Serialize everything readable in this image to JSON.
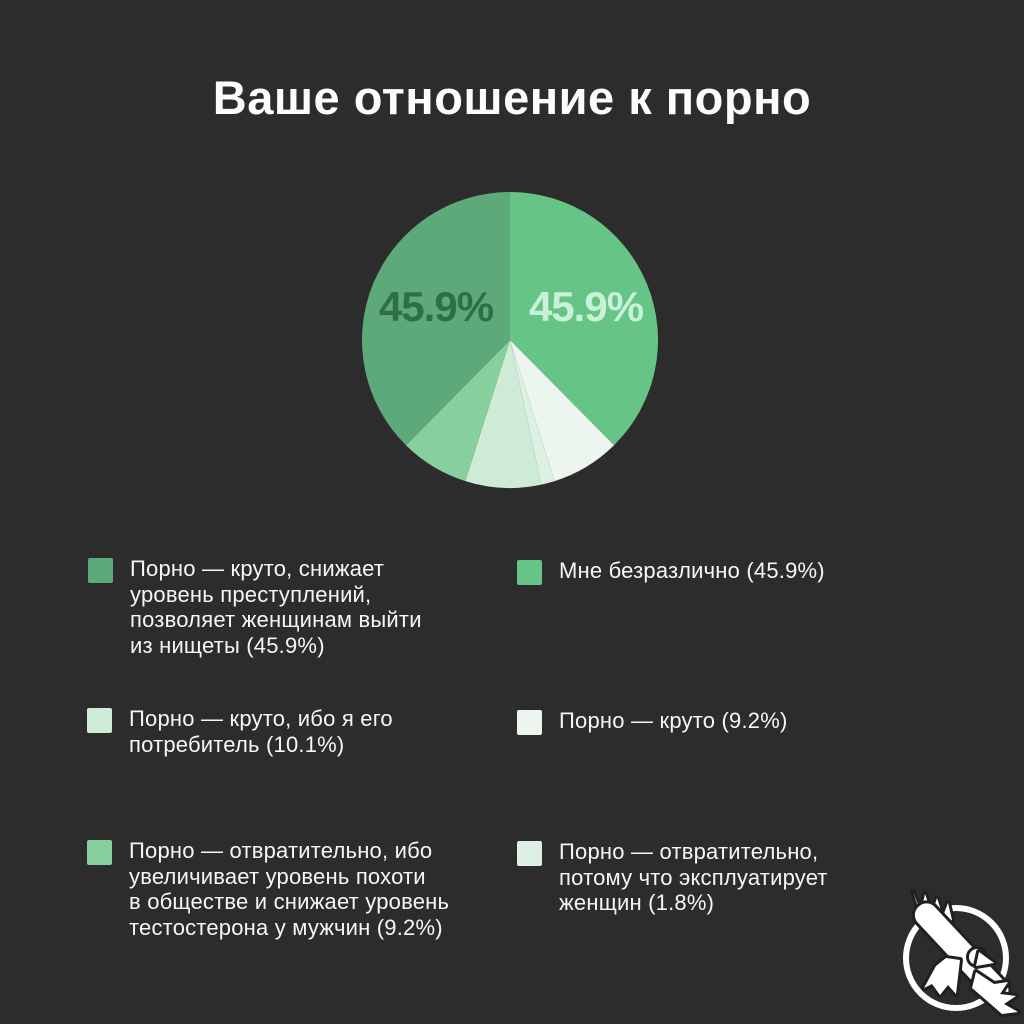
{
  "title": "Ваше отношение к порно",
  "colors": {
    "background": "#212020",
    "title_text": "#fcfcfc",
    "legend_text": "#f6f6f6",
    "logo": "#ffffff"
  },
  "chart_data": {
    "type": "pie",
    "title": "Ваше отношение к порно",
    "legend_position": "bottom",
    "slices": [
      {
        "label": "Мне безразлично",
        "value": 45.9,
        "color": "#66c487"
      },
      {
        "label": "Порно — круто",
        "value": 9.2,
        "color": "#ecf6ef"
      },
      {
        "label": "Порно — отвратительно, потому что эксплуатирует женщин",
        "value": 1.8,
        "color": "#ddf0e4"
      },
      {
        "label": "Порно — круто, ибо я его потребитель",
        "value": 10.1,
        "color": "#cdebd7"
      },
      {
        "label": "Порно — отвратительно, ибо увеличивает уровень похоти в обществе и снижает уровень тестостерона у мужчин",
        "value": 9.2,
        "color": "#87cf9d"
      },
      {
        "label": "Порно — круто, снижает уровень преступлений, позволяет женщинам выйти из нищеты",
        "value": 45.9,
        "color": "#5ea97a"
      }
    ],
    "value_labels": [
      {
        "text": "45.9%",
        "color": "#2e6f49",
        "position": "left-slice"
      },
      {
        "text": "45.9%",
        "color": "#c9f0d8",
        "position": "right-slice"
      }
    ]
  },
  "legend": {
    "items": [
      {
        "color": "#5ea97a",
        "label": "Порно — круто, снижает\nуровень преступлений,\nпозволяет женщинам выйти\nиз нищеты (45.9%)"
      },
      {
        "color": "#66c487",
        "label": "Мне безразлично (45.9%)"
      },
      {
        "color": "#cdebd7",
        "label": "Порно — круто, ибо я его\nпотребитель (10.1%)"
      },
      {
        "color": "#ecf6ef",
        "label": "Порно — круто (9.2%)"
      },
      {
        "color": "#87cf9d",
        "label": "Порно — отвратительно, ибо\nувеличивает уровень похоти\nв обществе и снижает уровень\nтестостерона у мужчин (9.2%)"
      },
      {
        "color": "#ddf0e4",
        "label": "Порно — отвратительно,\nпотому что эксплуатирует\nженщин (1.8%)"
      }
    ]
  },
  "logo": {
    "name": "bird-in-circle-logo"
  }
}
